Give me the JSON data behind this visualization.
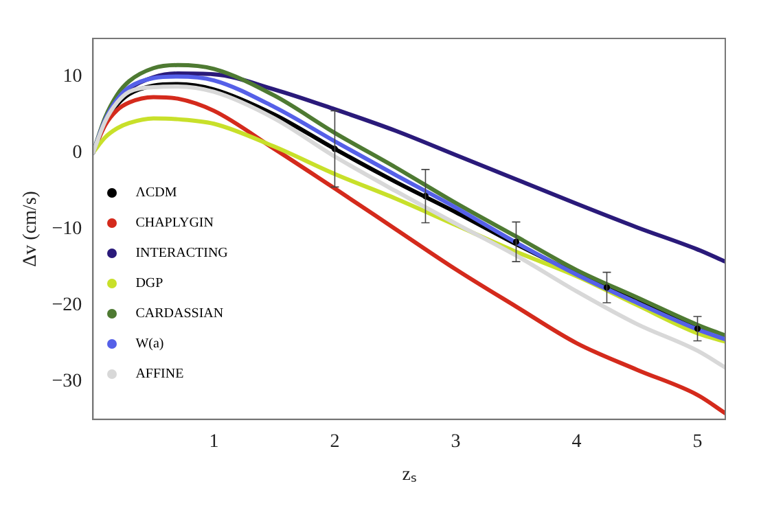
{
  "chart_data": {
    "type": "line",
    "xlabel": "zₛ",
    "ylabel": "Δv (cm/s)",
    "x": [
      0,
      0.1,
      0.2,
      0.3,
      0.5,
      0.7,
      1,
      1.5,
      2,
      2.5,
      3,
      3.5,
      4,
      4.5,
      5,
      5.23
    ],
    "series": [
      {
        "name": "ΛCDM",
        "color": "#000000",
        "values": [
          0,
          4,
          6.3,
          7.7,
          8.8,
          9,
          8.3,
          5,
          0.5,
          -3.8,
          -7.8,
          -12,
          -15.9,
          -19.5,
          -23.1,
          -24.7
        ]
      },
      {
        "name": "CHAPLYGIN",
        "color": "#d42a1c",
        "values": [
          0,
          3.6,
          5.6,
          6.6,
          7.3,
          7.1,
          5.5,
          0.5,
          -4.7,
          -10,
          -15.3,
          -20.2,
          -25,
          -28.5,
          -31.8,
          -34.2
        ]
      },
      {
        "name": "INTERACTING",
        "color": "#2a1a7a",
        "values": [
          0,
          4.2,
          6.8,
          8.4,
          9.9,
          10.4,
          10.3,
          8.3,
          5.7,
          2.9,
          -0.3,
          -3.5,
          -6.7,
          -9.8,
          -12.7,
          -14.3
        ]
      },
      {
        "name": "DGP",
        "color": "#c8e02a",
        "values": [
          0,
          2,
          3.2,
          3.9,
          4.5,
          4.4,
          3.8,
          0.8,
          -2.8,
          -6,
          -9.5,
          -13,
          -16.2,
          -20,
          -23.7,
          -24.8
        ]
      },
      {
        "name": "CARDASSIAN",
        "color": "#4e7a32",
        "values": [
          0,
          4.6,
          7.6,
          9.4,
          11.1,
          11.5,
          11,
          7.5,
          2.6,
          -1.9,
          -6.6,
          -11,
          -15.4,
          -19,
          -22.6,
          -24
        ]
      },
      {
        "name": "W(a)",
        "color": "#5560e8",
        "values": [
          0,
          4.3,
          7,
          8.6,
          9.8,
          10,
          9.5,
          6,
          1.5,
          -2.9,
          -7.2,
          -11.8,
          -16,
          -19.7,
          -23.2,
          -24.5
        ]
      },
      {
        "name": "AFFINE",
        "color": "#d8d8d8",
        "values": [
          0,
          4.1,
          6.6,
          8,
          8.6,
          8.7,
          8,
          4.5,
          -0.5,
          -5,
          -9.3,
          -13.5,
          -18.2,
          -22.5,
          -26,
          -28.2
        ]
      },
      {
        "type": "scatter",
        "color": "#000000",
        "marker": "circle",
        "x": [
          2,
          2.75,
          3.5,
          4.25,
          5
        ],
        "values": [
          0.5,
          -5.7,
          -11.7,
          -17.7,
          -23.1
        ],
        "errors": [
          5,
          3.5,
          2.6,
          2,
          1.6
        ]
      }
    ],
    "xlim": [
      0,
      5.23
    ],
    "xticks": [
      1,
      2,
      3,
      4,
      5
    ],
    "ylim": [
      -35,
      15
    ],
    "yticks": [
      -30,
      -20,
      -10,
      0,
      10
    ],
    "grid": false,
    "legend": "left",
    "marker": "none",
    "line_style": "solid"
  }
}
